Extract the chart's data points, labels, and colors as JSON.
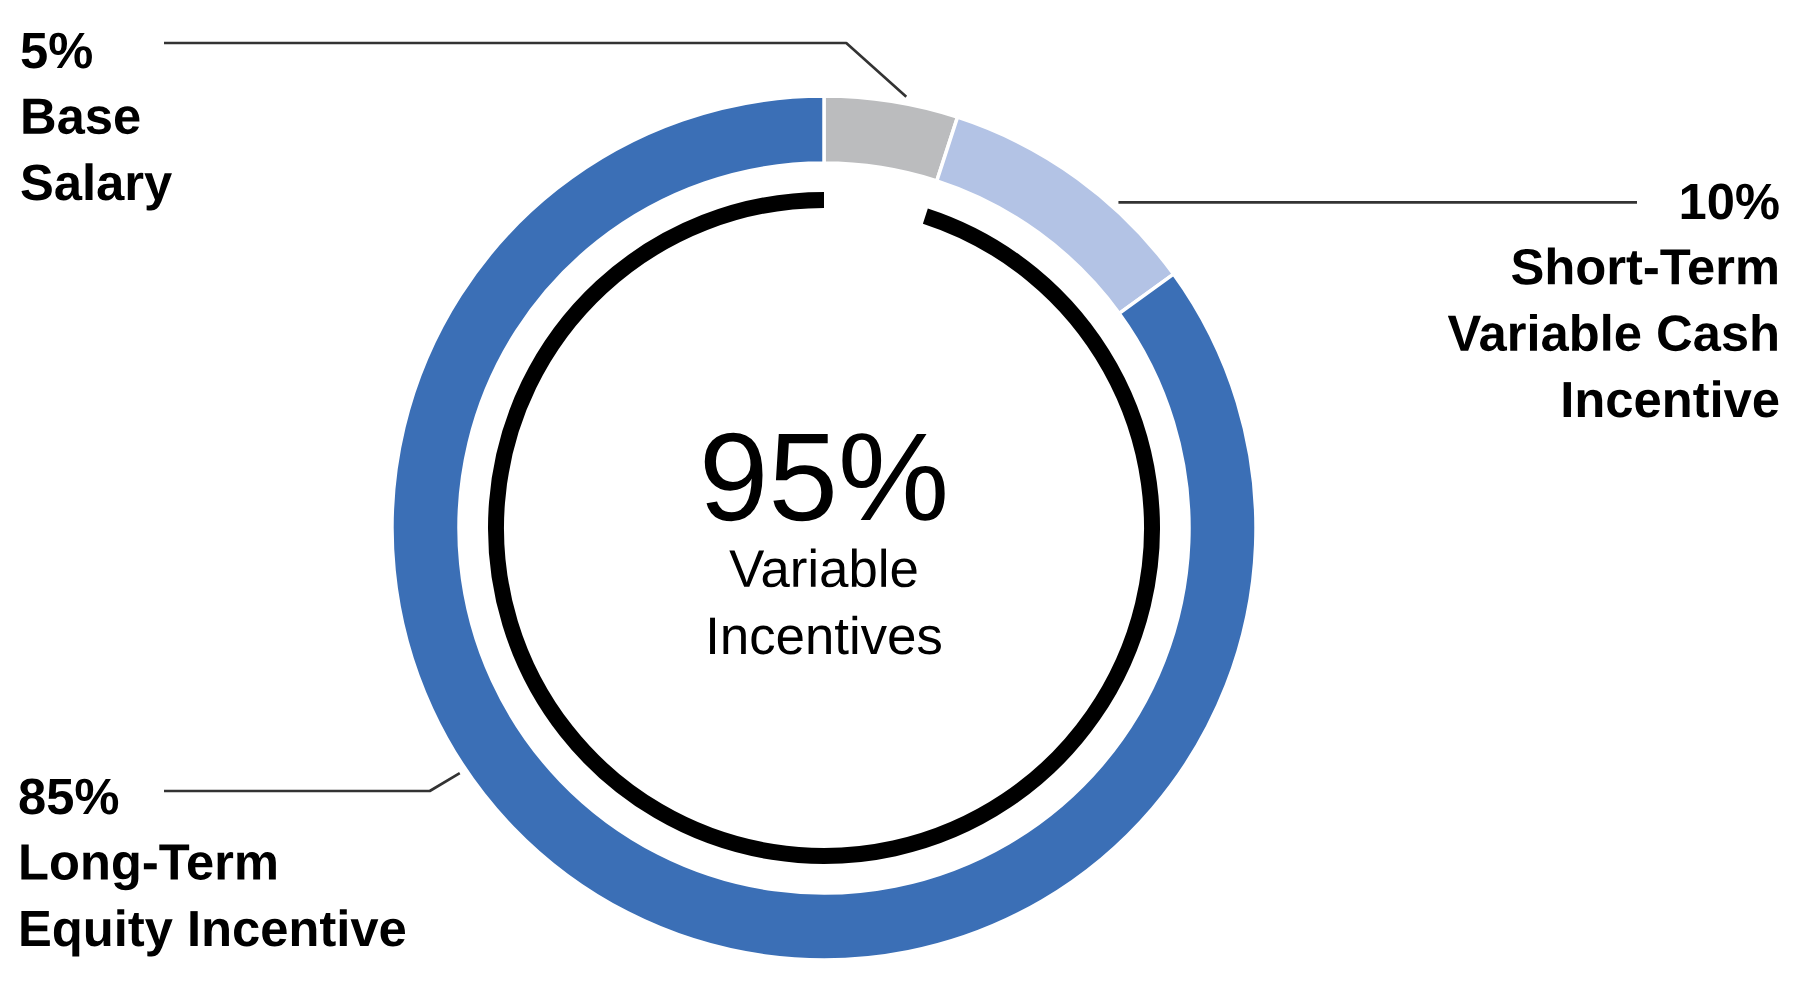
{
  "chart_data": {
    "type": "donut",
    "categories": [
      "Base\nSalary",
      "Short-Term\nVariable Cash\nIncentive",
      "Long-Term\nEquity Incentive"
    ],
    "values": [
      5,
      10,
      85
    ],
    "colors": [
      "#bbbcbe",
      "#b3c3e5",
      "#3b6fb6"
    ],
    "value_labels": [
      "5%",
      "10%",
      "85%"
    ],
    "annotations": [
      "95%",
      "Variable\nIncentives"
    ]
  }
}
